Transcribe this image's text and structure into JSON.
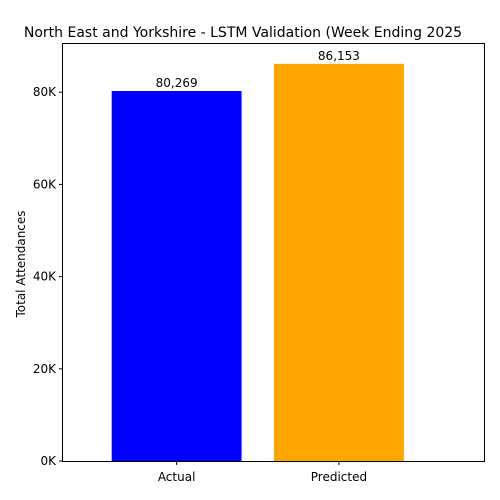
{
  "chart_data": {
    "type": "bar",
    "title": "North East and Yorkshire - LSTM Validation (Week Ending 2025",
    "xlabel": "",
    "ylabel": "Total Attendances",
    "categories": [
      "Actual",
      "Predicted"
    ],
    "values": [
      80269,
      86153
    ],
    "value_labels": [
      "80,269",
      "86,153"
    ],
    "colors": [
      "#0000ff",
      "#ffa500"
    ],
    "ylim": [
      0,
      90460
    ],
    "yticks": [
      0,
      20000,
      40000,
      60000,
      80000
    ],
    "ytick_labels": [
      "0K",
      "20K",
      "40K",
      "60K",
      "80K"
    ],
    "grid": false,
    "legend": "none"
  }
}
